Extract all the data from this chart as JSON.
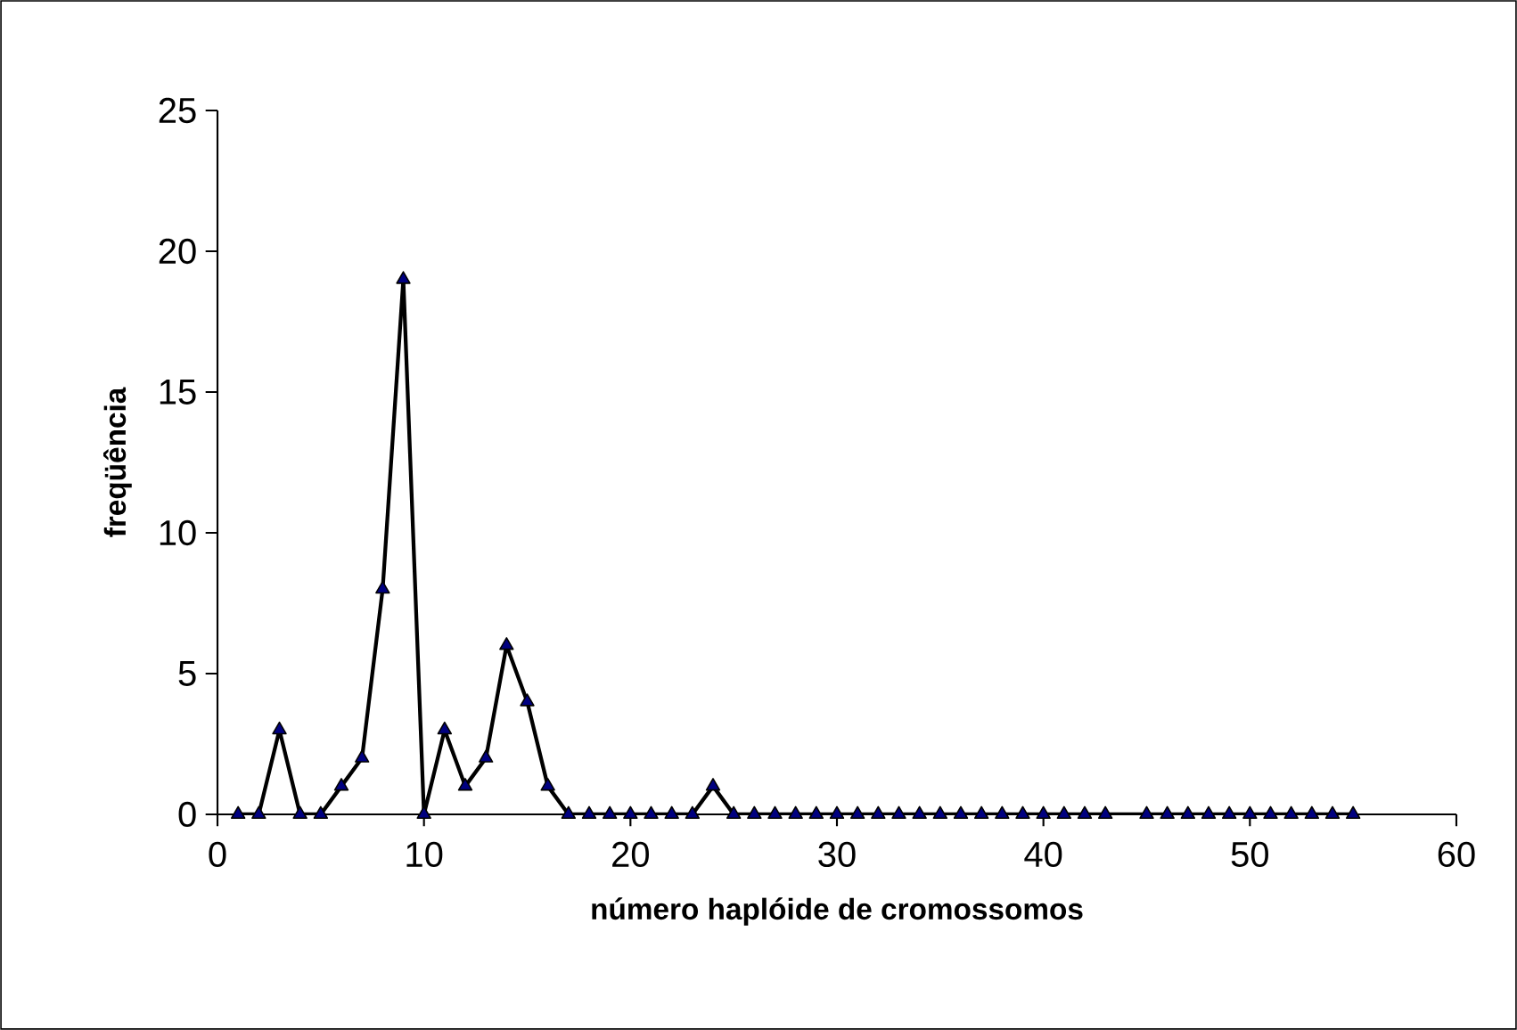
{
  "chart_data": {
    "type": "line",
    "xlabel": "número haplóide de cromossomos",
    "ylabel": "freqüência",
    "x": [
      1,
      2,
      3,
      4,
      5,
      6,
      7,
      8,
      9,
      10,
      11,
      12,
      13,
      14,
      15,
      16,
      17,
      18,
      19,
      20,
      21,
      22,
      23,
      24,
      25,
      26,
      27,
      28,
      29,
      30,
      31,
      32,
      33,
      34,
      35,
      36,
      37,
      38,
      39,
      40,
      41,
      42,
      43,
      45,
      46,
      47,
      48,
      49,
      50,
      51,
      52,
      53,
      54,
      55
    ],
    "series": [
      {
        "color": "#000080",
        "values": [
          0,
          0,
          3,
          0,
          0,
          1,
          2,
          8,
          19,
          0,
          3,
          1,
          2,
          6,
          4,
          1,
          0,
          0,
          0,
          0,
          0,
          0,
          0,
          1,
          0,
          0,
          0,
          0,
          0,
          0,
          0,
          0,
          0,
          0,
          0,
          0,
          0,
          0,
          0,
          0,
          0,
          0,
          0,
          0,
          0,
          0,
          0,
          0,
          0,
          0,
          0,
          0,
          0,
          0
        ]
      }
    ],
    "xlim": [
      0,
      60
    ],
    "xticks": [
      0,
      10,
      20,
      30,
      40,
      50,
      60
    ],
    "ylim": [
      0,
      25
    ],
    "yticks": [
      0,
      5,
      10,
      15,
      20,
      25
    ],
    "marker": "triangle",
    "line_style": "solid",
    "grid": false
  }
}
